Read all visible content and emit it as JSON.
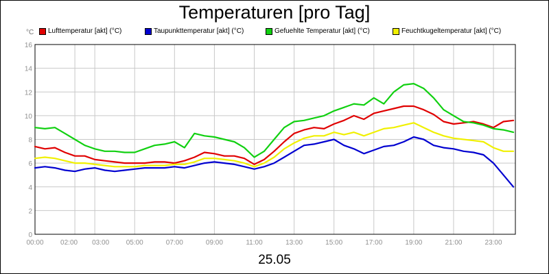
{
  "chart_data": {
    "type": "line",
    "title": "Temperaturen [pro Tag]",
    "unit_label": "°C",
    "xlabel": "25.05",
    "x_tick_labels": [
      "00:00",
      "02:00",
      "03:00",
      "05:00",
      "07:00",
      "09:00",
      "11:00",
      "13:00",
      "15:00",
      "17:00",
      "19:00",
      "21:00",
      "23:00"
    ],
    "x_tick_hours": [
      0,
      2,
      3,
      5,
      7,
      9,
      11,
      13,
      15,
      17,
      19,
      21,
      23
    ],
    "xlim": [
      0,
      24.1
    ],
    "ylim": [
      0,
      16
    ],
    "y_ticks": [
      0,
      2,
      4,
      6,
      8,
      10,
      12,
      14,
      16
    ],
    "grid": true,
    "legend_position": "top",
    "series": [
      {
        "name": "Lufttemperatur [akt] (°C)",
        "color": "#e00000",
        "x": [
          0,
          0.5,
          1,
          1.5,
          2,
          2.5,
          3,
          3.5,
          4,
          4.5,
          5,
          5.5,
          6,
          6.5,
          7,
          7.5,
          8,
          8.5,
          9,
          9.5,
          10,
          10.5,
          11,
          11.5,
          12,
          12.5,
          13,
          13.5,
          14,
          14.5,
          15,
          15.5,
          16,
          16.5,
          17,
          17.5,
          18,
          18.5,
          19,
          19.5,
          20,
          20.5,
          21,
          21.5,
          22,
          22.5,
          23,
          23.5,
          24
        ],
        "y": [
          7.4,
          7.2,
          7.3,
          6.9,
          6.6,
          6.6,
          6.3,
          6.2,
          6.1,
          6.0,
          6.0,
          6.0,
          6.1,
          6.1,
          6.0,
          6.2,
          6.5,
          6.9,
          6.8,
          6.6,
          6.6,
          6.4,
          5.9,
          6.3,
          7.0,
          7.8,
          8.5,
          8.8,
          9.0,
          8.9,
          9.3,
          9.6,
          10.0,
          9.7,
          10.2,
          10.4,
          10.6,
          10.8,
          10.8,
          10.5,
          10.1,
          9.5,
          9.3,
          9.4,
          9.5,
          9.3,
          9.0,
          9.5,
          9.6
        ]
      },
      {
        "name": "Taupunkttemperatur [akt] (°C)",
        "color": "#0000d0",
        "x": [
          0,
          0.5,
          1,
          1.5,
          2,
          2.5,
          3,
          3.5,
          4,
          4.5,
          5,
          5.5,
          6,
          6.5,
          7,
          7.5,
          8,
          8.5,
          9,
          9.5,
          10,
          10.5,
          11,
          11.5,
          12,
          12.5,
          13,
          13.5,
          14,
          14.5,
          15,
          15.5,
          16,
          16.5,
          17,
          17.5,
          18,
          18.5,
          19,
          19.5,
          20,
          20.5,
          21,
          21.5,
          22,
          22.5,
          23,
          23.5,
          24
        ],
        "y": [
          5.6,
          5.7,
          5.6,
          5.4,
          5.3,
          5.5,
          5.6,
          5.4,
          5.3,
          5.4,
          5.5,
          5.6,
          5.6,
          5.6,
          5.7,
          5.6,
          5.8,
          6.0,
          6.1,
          6.0,
          5.9,
          5.7,
          5.5,
          5.7,
          6.0,
          6.5,
          7.0,
          7.5,
          7.6,
          7.8,
          8.0,
          7.5,
          7.2,
          6.8,
          7.1,
          7.4,
          7.5,
          7.8,
          8.2,
          8.0,
          7.5,
          7.3,
          7.2,
          7.0,
          6.9,
          6.7,
          6.0,
          5.0,
          4.0
        ]
      },
      {
        "name": "Gefuehlte Temperatur [akt] (°C)",
        "color": "#10d010",
        "x": [
          0,
          0.5,
          1,
          1.5,
          2,
          2.5,
          3,
          3.5,
          4,
          4.5,
          5,
          5.5,
          6,
          6.5,
          7,
          7.5,
          8,
          8.5,
          9,
          9.5,
          10,
          10.5,
          11,
          11.5,
          12,
          12.5,
          13,
          13.5,
          14,
          14.5,
          15,
          15.5,
          16,
          16.5,
          17,
          17.5,
          18,
          18.5,
          19,
          19.5,
          20,
          20.5,
          21,
          21.5,
          22,
          22.5,
          23,
          23.5,
          24
        ],
        "y": [
          9.0,
          8.9,
          9.0,
          8.5,
          8.0,
          7.5,
          7.2,
          7.0,
          7.0,
          6.9,
          6.9,
          7.2,
          7.5,
          7.6,
          7.8,
          7.3,
          8.5,
          8.3,
          8.2,
          8.0,
          7.8,
          7.3,
          6.5,
          7.0,
          8.0,
          9.0,
          9.5,
          9.6,
          9.8,
          10.0,
          10.4,
          10.7,
          11.0,
          10.9,
          11.5,
          11.0,
          12.0,
          12.6,
          12.7,
          12.3,
          11.5,
          10.5,
          10.0,
          9.5,
          9.4,
          9.2,
          8.9,
          8.8,
          8.6
        ]
      },
      {
        "name": "Feuchtkugeltemperatur [akt] (°C)",
        "color": "#f0f000",
        "x": [
          0,
          0.5,
          1,
          1.5,
          2,
          2.5,
          3,
          3.5,
          4,
          4.5,
          5,
          5.5,
          6,
          6.5,
          7,
          7.5,
          8,
          8.5,
          9,
          9.5,
          10,
          10.5,
          11,
          11.5,
          12,
          12.5,
          13,
          13.5,
          14,
          14.5,
          15,
          15.5,
          16,
          16.5,
          17,
          17.5,
          18,
          18.5,
          19,
          19.5,
          20,
          20.5,
          21,
          21.5,
          22,
          22.5,
          23,
          23.5,
          24
        ],
        "y": [
          6.4,
          6.5,
          6.4,
          6.2,
          6.0,
          6.0,
          5.9,
          5.8,
          5.7,
          5.7,
          5.7,
          5.8,
          5.8,
          5.8,
          5.9,
          5.9,
          6.1,
          6.4,
          6.4,
          6.3,
          6.2,
          6.0,
          5.7,
          6.0,
          6.5,
          7.2,
          7.7,
          8.1,
          8.3,
          8.3,
          8.6,
          8.4,
          8.6,
          8.3,
          8.6,
          8.9,
          9.0,
          9.2,
          9.4,
          9.0,
          8.6,
          8.3,
          8.1,
          8.0,
          7.9,
          7.8,
          7.3,
          7.0,
          7.0
        ]
      }
    ]
  }
}
